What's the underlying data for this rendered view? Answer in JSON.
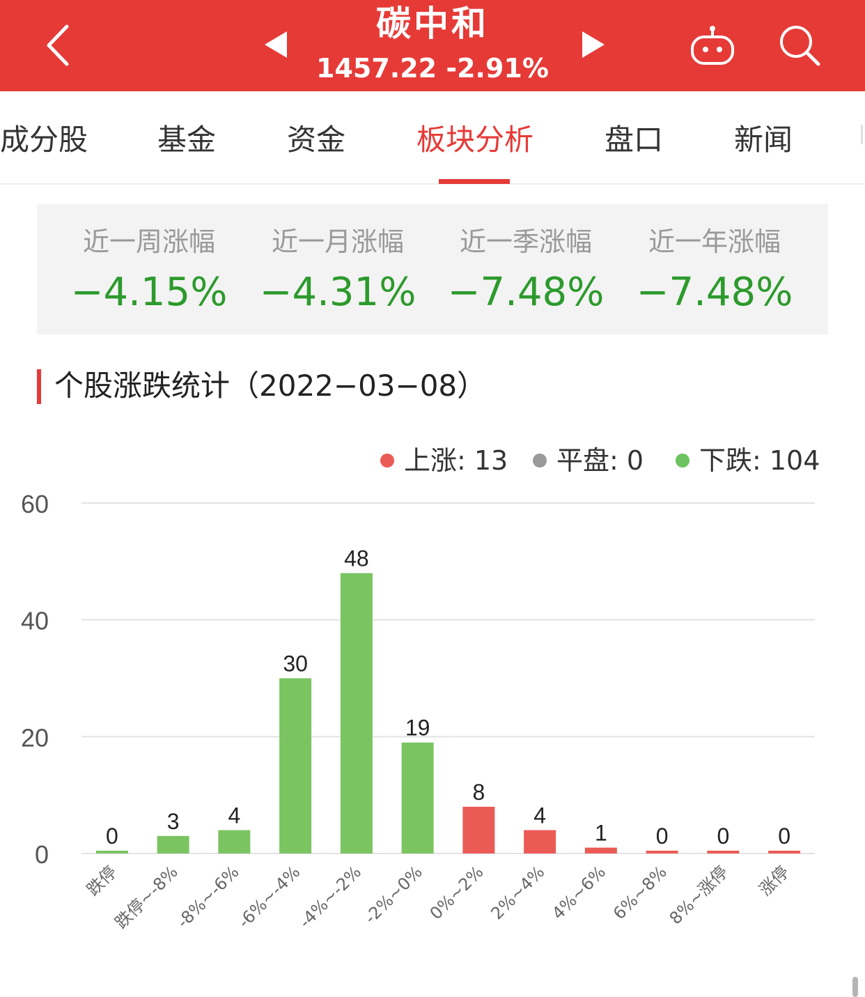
{
  "header": {
    "title": "碳中和",
    "subtitle": "1457.22 -2.91%",
    "background": "#e63a37",
    "icons": [
      "back-icon",
      "prev-icon",
      "next-icon",
      "robot-icon",
      "search-icon"
    ]
  },
  "tabs": [
    {
      "label": "成分股",
      "active": false
    },
    {
      "label": "基金",
      "active": false
    },
    {
      "label": "资金",
      "active": false
    },
    {
      "label": "板块分析",
      "active": true
    },
    {
      "label": "盘口",
      "active": false
    },
    {
      "label": "新闻",
      "active": false
    }
  ],
  "stats": [
    {
      "label": "近一周涨幅",
      "value": "−4.15%"
    },
    {
      "label": "近一月涨幅",
      "value": "−4.31%"
    },
    {
      "label": "近一季涨幅",
      "value": "−7.48%"
    },
    {
      "label": "近一年涨幅",
      "value": "−7.48%"
    }
  ],
  "section": {
    "title": "个股涨跌统计（2022−03−08）"
  },
  "legend": [
    {
      "label": "上涨: 13",
      "color": "#eb5b56"
    },
    {
      "label": "平盘: 0",
      "color": "#999999"
    },
    {
      "label": "下跌: 104",
      "color": "#6cc35f"
    }
  ],
  "colors": {
    "up": "#eb5b56",
    "down": "#7bc462",
    "neg_value": "#2c9a2c"
  },
  "chart_data": {
    "type": "bar",
    "categories": [
      "跌停",
      "跌停~-8%",
      "-8%~-6%",
      "-6%~-4%",
      "-4%~-2%",
      "-2%~0%",
      "0%~2%",
      "2%~4%",
      "4%~6%",
      "6%~8%",
      "8%~涨停",
      "涨停"
    ],
    "values": [
      0,
      3,
      4,
      30,
      48,
      19,
      8,
      4,
      1,
      0,
      0,
      0
    ],
    "bar_colors": [
      "#7bc462",
      "#7bc462",
      "#7bc462",
      "#7bc462",
      "#7bc462",
      "#7bc462",
      "#eb5b56",
      "#eb5b56",
      "#eb5b56",
      "#eb5b56",
      "#eb5b56",
      "#eb5b56"
    ],
    "yticks": [
      "0",
      "20",
      "40",
      "60"
    ],
    "ylim": [
      0,
      60
    ],
    "grid": true
  }
}
